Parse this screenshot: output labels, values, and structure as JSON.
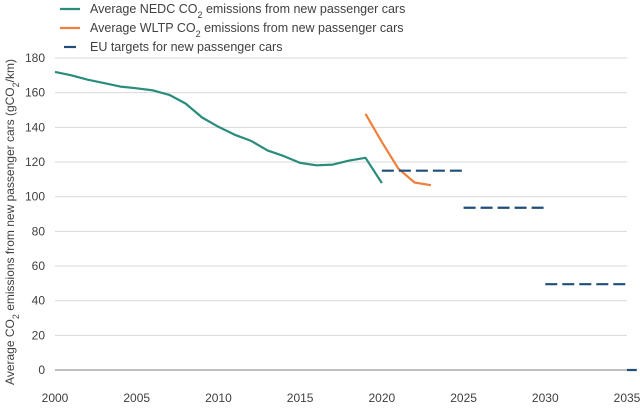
{
  "chart_data": {
    "type": "line",
    "ylabel": {
      "pre": "Average CO",
      "sub": "2",
      "mid": " emissions from new passenger cars (gCO",
      "sub2": "2",
      "post": "/km)"
    },
    "xlim": [
      2000,
      2035
    ],
    "ylim": [
      0,
      180
    ],
    "x_ticks": [
      2000,
      2005,
      2010,
      2015,
      2020,
      2025,
      2030,
      2035
    ],
    "y_ticks": [
      0,
      20,
      40,
      60,
      80,
      100,
      120,
      140,
      160,
      180
    ],
    "grid": "horizontal",
    "legend_position": "top-left",
    "series": [
      {
        "name": {
          "pre": "Average NEDC CO",
          "sub": "2",
          "post": " emissions from new passenger cars"
        },
        "style": "solid",
        "color": "#2a8c7c",
        "points": [
          [
            2000,
            172
          ],
          [
            2001,
            170
          ],
          [
            2002,
            167.5
          ],
          [
            2003,
            165.5
          ],
          [
            2004,
            163.5
          ],
          [
            2005,
            162.5
          ],
          [
            2006,
            161.3
          ],
          [
            2007,
            158.7
          ],
          [
            2008,
            153.7
          ],
          [
            2009,
            145.7
          ],
          [
            2010,
            140.3
          ],
          [
            2011,
            135.7
          ],
          [
            2012,
            132.2
          ],
          [
            2013,
            126.7
          ],
          [
            2014,
            123.4
          ],
          [
            2015,
            119.5
          ],
          [
            2016,
            118.1
          ],
          [
            2017,
            118.5
          ],
          [
            2018,
            120.8
          ],
          [
            2019,
            122.4
          ],
          [
            2020,
            107.8
          ]
        ]
      },
      {
        "name": {
          "pre": "Average WLTP CO",
          "sub": "2",
          "post": " emissions from new passenger cars"
        },
        "style": "solid",
        "color": "#f07f3c",
        "points": [
          [
            2019,
            147.8
          ],
          [
            2020,
            131.5
          ],
          [
            2021,
            116.3
          ],
          [
            2022,
            108.2
          ],
          [
            2023,
            106.6
          ]
        ]
      },
      {
        "name": {
          "pre": "EU targets for new passenger cars",
          "sub": "",
          "post": ""
        },
        "style": "dashed",
        "color": "#1f4e79",
        "segments": [
          {
            "x": [
              2020,
              2025
            ],
            "y": 115
          },
          {
            "x": [
              2025,
              2030
            ],
            "y": 93.6
          },
          {
            "x": [
              2030,
              2035
            ],
            "y": 49.5
          },
          {
            "x": [
              2035,
              2035.6
            ],
            "y": 0
          }
        ]
      }
    ]
  }
}
